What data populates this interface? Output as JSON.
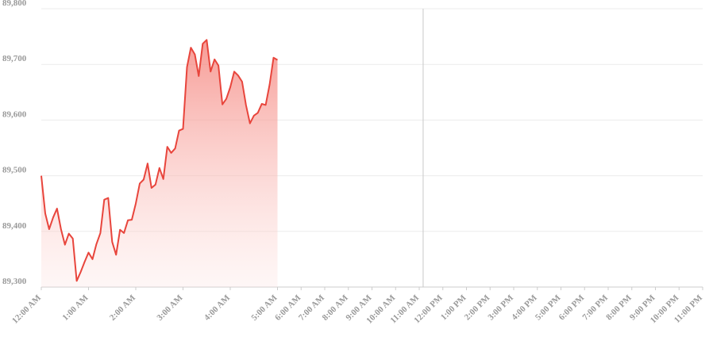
{
  "chart_data": {
    "type": "area",
    "x": [
      0,
      1,
      2,
      3,
      4,
      5,
      6,
      7,
      8,
      9,
      10,
      11,
      12,
      13,
      14,
      15,
      16,
      17,
      18,
      19,
      20,
      21,
      22,
      23,
      24,
      25,
      26,
      27,
      28,
      29,
      30,
      31,
      32,
      33,
      34,
      35,
      36,
      37,
      38,
      39,
      40,
      41,
      42,
      43,
      44,
      45,
      46,
      47,
      48,
      49,
      50,
      51,
      52,
      53,
      54,
      55,
      56,
      57,
      58,
      59,
      60
    ],
    "values": [
      89500,
      89432,
      89404,
      89425,
      89441,
      89404,
      89376,
      89396,
      89387,
      89311,
      89327,
      89345,
      89362,
      89350,
      89377,
      89397,
      89457,
      89460,
      89381,
      89358,
      89403,
      89397,
      89420,
      89421,
      89450,
      89486,
      89493,
      89522,
      89478,
      89484,
      89514,
      89494,
      89552,
      89541,
      89549,
      89581,
      89584,
      89695,
      89730,
      89718,
      89679,
      89737,
      89744,
      89687,
      89709,
      89698,
      89628,
      89638,
      89659,
      89687,
      89680,
      89669,
      89627,
      89594,
      89608,
      89613,
      89629,
      89627,
      89664,
      89712,
      89708
    ],
    "color": "#e8453c",
    "xlim": [
      0,
      168
    ],
    "xticks": [
      {
        "value": 0,
        "label": "12:00 AM"
      },
      {
        "value": 12,
        "label": "1:00 AM"
      },
      {
        "value": 24,
        "label": "2:00 AM"
      },
      {
        "value": 36,
        "label": "3:00 AM"
      },
      {
        "value": 48,
        "label": "4:00 AM"
      },
      {
        "value": 60,
        "label": "5:00 AM"
      },
      {
        "value": 66,
        "label": "6:00 AM"
      },
      {
        "value": 72,
        "label": "7:00 AM"
      },
      {
        "value": 78,
        "label": "8:00 AM"
      },
      {
        "value": 84,
        "label": "9:00 AM"
      },
      {
        "value": 90,
        "label": "10:00 AM"
      },
      {
        "value": 96,
        "label": "11:00 AM"
      },
      {
        "value": 102,
        "label": "12:00 PM"
      },
      {
        "value": 108,
        "label": "1:00 PM"
      },
      {
        "value": 114,
        "label": "2:00 PM"
      },
      {
        "value": 120,
        "label": "3:00 PM"
      },
      {
        "value": 126,
        "label": "4:00 PM"
      },
      {
        "value": 132,
        "label": "5:00 PM"
      },
      {
        "value": 138,
        "label": "6:00 PM"
      },
      {
        "value": 144,
        "label": "7:00 PM"
      },
      {
        "value": 150,
        "label": "8:00 PM"
      },
      {
        "value": 156,
        "label": "9:00 PM"
      },
      {
        "value": 162,
        "label": "10:00 PM"
      },
      {
        "value": 168,
        "label": "11:00 PM"
      }
    ],
    "ylim": [
      89300,
      89800
    ],
    "yticks": [
      {
        "value": 89300,
        "label": "89,300"
      },
      {
        "value": 89400,
        "label": "89,400"
      },
      {
        "value": 89500,
        "label": "89,500"
      },
      {
        "value": 89600,
        "label": "89,600"
      },
      {
        "value": 89700,
        "label": "89,700"
      },
      {
        "value": 89800,
        "label": "89,800"
      }
    ],
    "grid": true,
    "crosshair_x": 97
  }
}
